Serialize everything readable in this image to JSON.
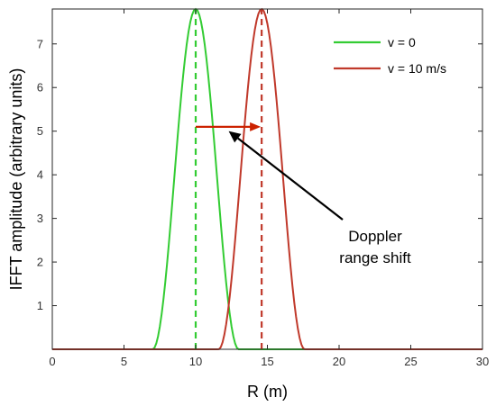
{
  "chart_data": {
    "type": "line",
    "title": "",
    "xlabel": "R (m)",
    "ylabel": "IFFT amplitude (arbitrary units)",
    "xlim": [
      0,
      30
    ],
    "ylim": [
      0,
      7.8
    ],
    "xticks": [
      0,
      5,
      10,
      15,
      20,
      25,
      30
    ],
    "yticks": [
      1,
      2,
      3,
      4,
      5,
      6,
      7
    ],
    "grid": false,
    "legend_position": "top-right",
    "series": [
      {
        "name": "v = 0",
        "color": "#33cc33",
        "peak_x": 10.0,
        "peak_y": 7.8,
        "support": [
          7.0,
          13.0
        ]
      },
      {
        "name": "v = 10 m/s",
        "color": "#c0392b",
        "peak_x": 14.6,
        "peak_y": 7.8,
        "support": [
          11.6,
          17.6
        ]
      }
    ],
    "shift_arrow": {
      "from_x": 10.0,
      "to_x": 14.6,
      "y": 5.1,
      "color": "#cc2200"
    },
    "annotation": {
      "lines": [
        "Doppler",
        "range shift"
      ],
      "arrow_to": {
        "x": 12.3,
        "y": 5.0
      }
    }
  }
}
